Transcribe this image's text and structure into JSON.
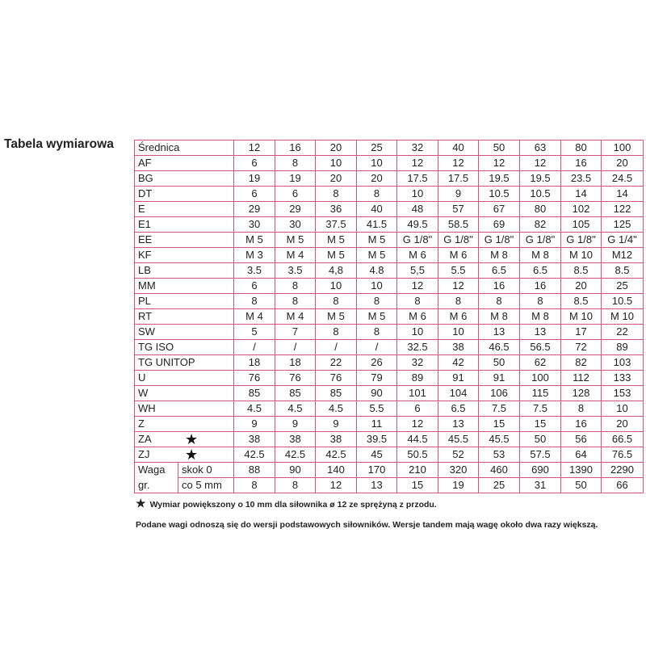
{
  "title": "Tabela wymiarowa",
  "accent_color": "#d2557f",
  "header": {
    "label": "Średnica",
    "values": [
      "12",
      "16",
      "20",
      "25",
      "32",
      "40",
      "50",
      "63",
      "80",
      "100"
    ]
  },
  "rows": [
    {
      "label": "AF",
      "values": [
        "6",
        "8",
        "10",
        "10",
        "12",
        "12",
        "12",
        "12",
        "16",
        "20"
      ]
    },
    {
      "label": "BG",
      "values": [
        "19",
        "19",
        "20",
        "20",
        "17.5",
        "17.5",
        "19.5",
        "19.5",
        "23.5",
        "24.5"
      ]
    },
    {
      "label": "DT",
      "values": [
        "6",
        "6",
        "8",
        "8",
        "10",
        "9",
        "10.5",
        "10.5",
        "14",
        "14"
      ]
    },
    {
      "label": "E",
      "values": [
        "29",
        "29",
        "36",
        "40",
        "48",
        "57",
        "67",
        "80",
        "102",
        "122"
      ]
    },
    {
      "label": "E1",
      "values": [
        "30",
        "30",
        "37.5",
        "41.5",
        "49.5",
        "58.5",
        "69",
        "82",
        "105",
        "125"
      ]
    },
    {
      "label": "EE",
      "values": [
        "M 5",
        "M 5",
        "M 5",
        "M 5",
        "G 1/8\"",
        "G 1/8\"",
        "G 1/8\"",
        "G 1/8\"",
        "G 1/8\"",
        "G 1/4\""
      ]
    },
    {
      "label": "KF",
      "values": [
        "M 3",
        "M 4",
        "M 5",
        "M 5",
        "M 6",
        "M 6",
        "M 8",
        "M 8",
        "M 10",
        "M12"
      ]
    },
    {
      "label": "LB",
      "values": [
        "3.5",
        "3.5",
        "4,8",
        "4.8",
        "5,5",
        "5.5",
        "6.5",
        "6.5",
        "8.5",
        "8.5"
      ]
    },
    {
      "label": "MM",
      "values": [
        "6",
        "8",
        "10",
        "10",
        "12",
        "12",
        "16",
        "16",
        "20",
        "25"
      ]
    },
    {
      "label": "PL",
      "values": [
        "8",
        "8",
        "8",
        "8",
        "8",
        "8",
        "8",
        "8",
        "8.5",
        "10.5"
      ]
    },
    {
      "label": "RT",
      "values": [
        "M 4",
        "M 4",
        "M 5",
        "M 5",
        "M 6",
        "M 6",
        "M 8",
        "M 8",
        "M 10",
        "M 10"
      ]
    },
    {
      "label": "SW",
      "values": [
        "5",
        "7",
        "8",
        "8",
        "10",
        "10",
        "13",
        "13",
        "17",
        "22"
      ]
    },
    {
      "label": "TG ISO",
      "values": [
        "/",
        "/",
        "/",
        "/",
        "32.5",
        "38",
        "46.5",
        "56.5",
        "72",
        "89"
      ]
    },
    {
      "label": "TG UNITOP",
      "values": [
        "18",
        "18",
        "22",
        "26",
        "32",
        "42",
        "50",
        "62",
        "82",
        "103"
      ]
    },
    {
      "label": "U",
      "values": [
        "76",
        "76",
        "76",
        "79",
        "89",
        "91",
        "91",
        "100",
        "112",
        "133"
      ]
    },
    {
      "label": "W",
      "values": [
        "85",
        "85",
        "85",
        "90",
        "101",
        "104",
        "106",
        "115",
        "128",
        "153"
      ]
    },
    {
      "label": "WH",
      "values": [
        "4.5",
        "4.5",
        "4.5",
        "5.5",
        "6",
        "6.5",
        "7.5",
        "7.5",
        "8",
        "10"
      ]
    },
    {
      "label": "Z",
      "values": [
        "9",
        "9",
        "9",
        "11",
        "12",
        "13",
        "15",
        "15",
        "16",
        "20"
      ]
    },
    {
      "label": "ZA",
      "star": "★",
      "values": [
        "38",
        "38",
        "38",
        "39.5",
        "44.5",
        "45.5",
        "45.5",
        "50",
        "56",
        "66.5"
      ]
    },
    {
      "label": "ZJ",
      "star": "★",
      "values": [
        "42.5",
        "42.5",
        "42.5",
        "45",
        "50.5",
        "52",
        "53",
        "57.5",
        "64",
        "76.5"
      ]
    }
  ],
  "weight": {
    "label_top": "Waga",
    "label_bottom": "gr.",
    "rows": [
      {
        "sub": "skok 0",
        "values": [
          "88",
          "90",
          "140",
          "170",
          "210",
          "320",
          "460",
          "690",
          "1390",
          "2290"
        ]
      },
      {
        "sub": "co 5 mm",
        "values": [
          "8",
          "8",
          "12",
          "13",
          "15",
          "19",
          "25",
          "31",
          "50",
          "66"
        ]
      }
    ]
  },
  "notes": {
    "star": "★",
    "note1": "Wymiar powiększony o 10 mm dla siłownika ø 12 ze sprężyną z przodu.",
    "note2": "Podane wagi odnoszą się do wersji podstawowych siłowników. Wersje tandem mają wagę około dwa razy większą."
  }
}
